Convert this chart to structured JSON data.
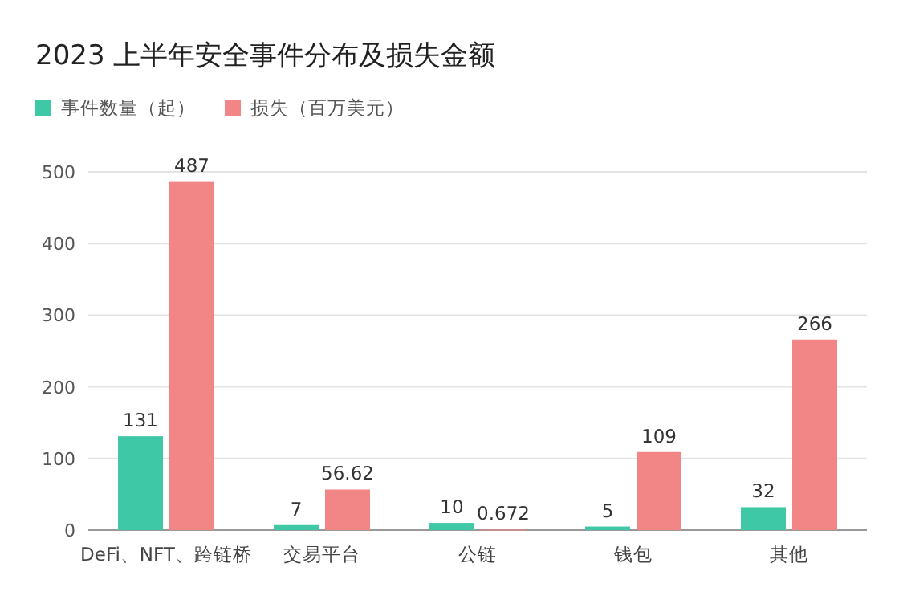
{
  "chart_data": {
    "type": "bar",
    "title": "2023 上半年安全事件分布及损失金额",
    "categories": [
      "DeFi、NFT、跨链桥",
      "交易平台",
      "公链",
      "钱包",
      "其他"
    ],
    "series": [
      {
        "name": "事件数量（起）",
        "color": "#3ec8a5",
        "values": [
          131,
          7,
          10,
          5,
          32
        ]
      },
      {
        "name": "损失（百万美元）",
        "color": "#f28585",
        "values": [
          487,
          56.62,
          0.672,
          109,
          266
        ]
      }
    ],
    "ylim": [
      0,
      500
    ],
    "yticks": [
      0,
      100,
      200,
      300,
      400,
      500
    ],
    "grid": "y",
    "legend": "top left",
    "data_labels": true
  }
}
